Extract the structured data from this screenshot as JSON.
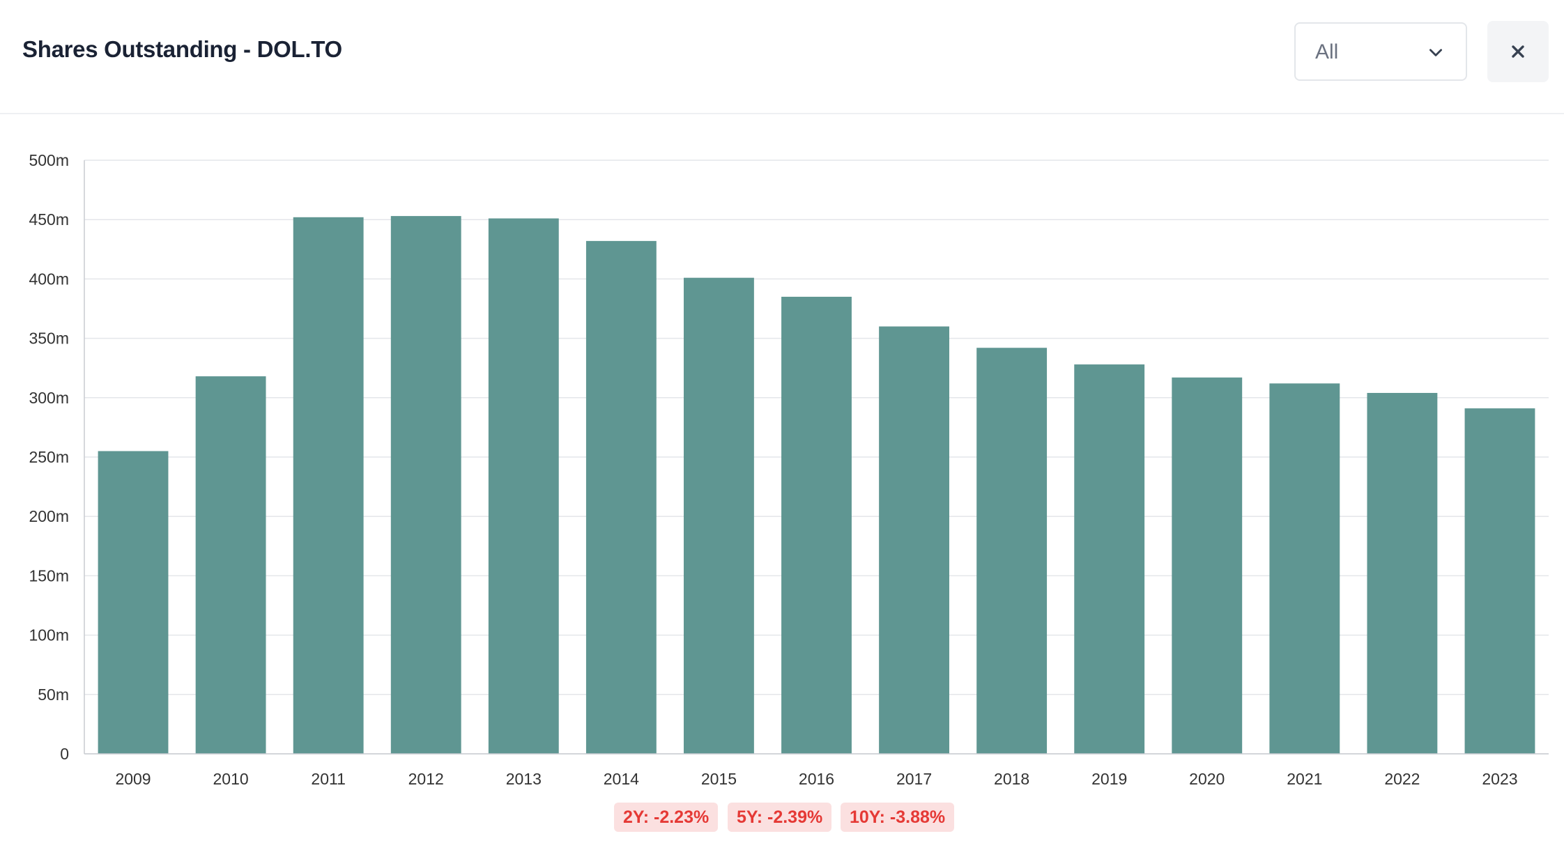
{
  "header": {
    "title": "Shares Outstanding - DOL.TO",
    "range_select": {
      "value": "All",
      "icon": "chevron-down-icon"
    },
    "close_button": {
      "icon": "close-icon"
    }
  },
  "chart_data": {
    "type": "bar",
    "categories": [
      "2009",
      "2010",
      "2011",
      "2012",
      "2013",
      "2014",
      "2015",
      "2016",
      "2017",
      "2018",
      "2019",
      "2020",
      "2021",
      "2022",
      "2023"
    ],
    "values": [
      255,
      318,
      452,
      453,
      451,
      432,
      401,
      385,
      360,
      342,
      328,
      317,
      312,
      304,
      291
    ],
    "unit": "m",
    "ylim": [
      0,
      500
    ],
    "yticks": [
      "0",
      "50m",
      "100m",
      "150m",
      "200m",
      "250m",
      "300m",
      "350m",
      "400m",
      "450m",
      "500m"
    ],
    "bar_color": "#5f9692",
    "grid": true,
    "title": "",
    "xlabel": "",
    "ylabel": ""
  },
  "growth_badges": [
    {
      "label": "2Y: -2.23%"
    },
    {
      "label": "5Y: -2.39%"
    },
    {
      "label": "10Y: -3.88%"
    }
  ]
}
